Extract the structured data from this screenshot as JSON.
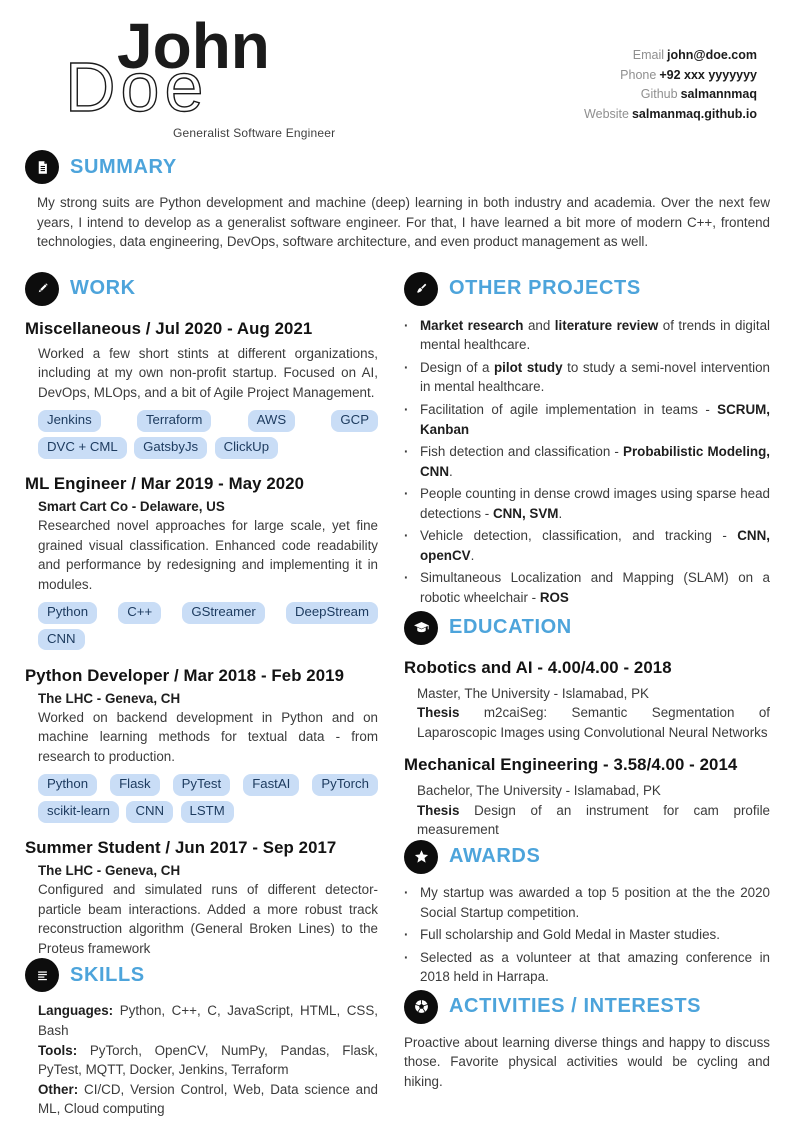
{
  "page": {
    "accent_blue": "#4da4db",
    "tag_background": "#c9ddf6",
    "tag_text": "#1c3a5e",
    "icon_circle_background": "#0d0d0d"
  },
  "header": {
    "first_name": "John",
    "last_name": "Doe",
    "tagline": "Generalist Software Engineer",
    "contact": [
      {
        "label": "Email",
        "value": "john@doe.com"
      },
      {
        "label": "Phone",
        "value": "+92 xxx yyyyyyy"
      },
      {
        "label": "Github",
        "value": "salmannmaq"
      },
      {
        "label": "Website",
        "value": "salmanmaq.github.io"
      }
    ]
  },
  "summary": {
    "heading": "SUMMARY",
    "icon": "document-icon",
    "text": "My strong suits are Python development and machine (deep) learning in both industry and academia. Over the next few years, I intend to develop as a generalist software engineer. For that, I have learned a bit more of modern C++, frontend technologies, data engineering, DevOps, software architecture, and even product management as well."
  },
  "work": {
    "heading": "WORK",
    "icon": "pencil-icon",
    "entries": [
      {
        "title": "Miscellaneous / Jul 2020 - Aug 2021",
        "company": "",
        "description": "Worked a few short stints at different organizations, including at my own non-profit startup. Focused on AI, DevOps, MLOps, and a bit of Agile Project Management.",
        "tags": [
          "Jenkins",
          "Terraform",
          "AWS",
          "GCP",
          "DVC + CML",
          "GatsbyJs",
          "ClickUp"
        ]
      },
      {
        "title": "ML Engineer / Mar 2019 - May 2020",
        "company": "Smart Cart Co - Delaware, US",
        "description": "Researched novel approaches for large scale, yet fine grained visual classification. Enhanced code readability and performance by redesigning and implementing it in modules.",
        "tags": [
          "Python",
          "C++",
          "GStreamer",
          "DeepStream",
          "CNN"
        ]
      },
      {
        "title": "Python Developer / Mar 2018 - Feb 2019",
        "company": "The LHC - Geneva, CH",
        "description": "Worked on backend development in Python and on machine learning methods for textual data - from research to production.",
        "tags": [
          "Python",
          "Flask",
          "PyTest",
          "FastAI",
          "PyTorch",
          "scikit-learn",
          "CNN",
          "LSTM"
        ]
      },
      {
        "title": "Summer Student / Jun 2017 - Sep 2017",
        "company": "The LHC - Geneva, CH",
        "description": "Configured and simulated runs of different detector-particle beam interactions.  Added a more robust track reconstruction algorithm (General Broken Lines) to the Proteus framework",
        "tags": []
      }
    ]
  },
  "skills": {
    "heading": "SKILLS",
    "icon": "list-icon",
    "lines": [
      "**Languages:** Python, C++, C, JavaScript, HTML, CSS, Bash",
      "**Tools:** PyTorch, OpenCV, NumPy, Pandas, Flask, PyTest, MQTT, Docker, Jenkins, Terraform",
      "**Other:** CI/CD, Version Control, Web, Data science and ML, Cloud computing"
    ]
  },
  "projects": {
    "heading": "OTHER PROJECTS",
    "icon": "paintbrush-icon",
    "items": [
      "**Market research** and **literature review** of trends in digital mental healthcare.",
      "Design of a **pilot study** to study a semi-novel intervention in mental healthcare.",
      "Facilitation of agile implementation in teams - **SCRUM, Kanban**",
      "Fish detection and classification - **Probabilistic Modeling, CNN**.",
      "People counting in dense crowd images using sparse head detections - **CNN, SVM**.",
      "Vehicle detection, classification, and tracking - **CNN, openCV**.",
      "Simultaneous Localization and Mapping (SLAM) on a robotic wheelchair - **ROS**"
    ]
  },
  "education": {
    "heading": "EDUCATION",
    "icon": "graduation-cap-icon",
    "entries": [
      {
        "title": "Robotics and AI - 4.00/4.00 - 2018",
        "subtitle": "Master, The University - Islamabad, PK",
        "thesis": "**Thesis** m2caiSeg:  Semantic Segmentation of Laparoscopic Images using Convolutional Neural Networks"
      },
      {
        "title": "Mechanical Engineering - 3.58/4.00 - 2014",
        "subtitle": "Bachelor, The University - Islamabad, PK",
        "thesis": "**Thesis** Design of an instrument for cam profile measurement"
      }
    ]
  },
  "awards": {
    "heading": "AWARDS",
    "icon": "star-icon",
    "items": [
      "My startup was awarded a top 5 position at the the 2020 Social Startup competition.",
      "Full scholarship and Gold Medal in Master studies.",
      "Selected as a volunteer at that amazing conference in 2018 held in Harrapa."
    ]
  },
  "activities": {
    "heading": "ACTIVITIES / INTERESTS",
    "icon": "soccer-ball-icon",
    "text": "Proactive about learning diverse things and happy to discuss those. Favorite physical activities would be cycling and hiking."
  }
}
